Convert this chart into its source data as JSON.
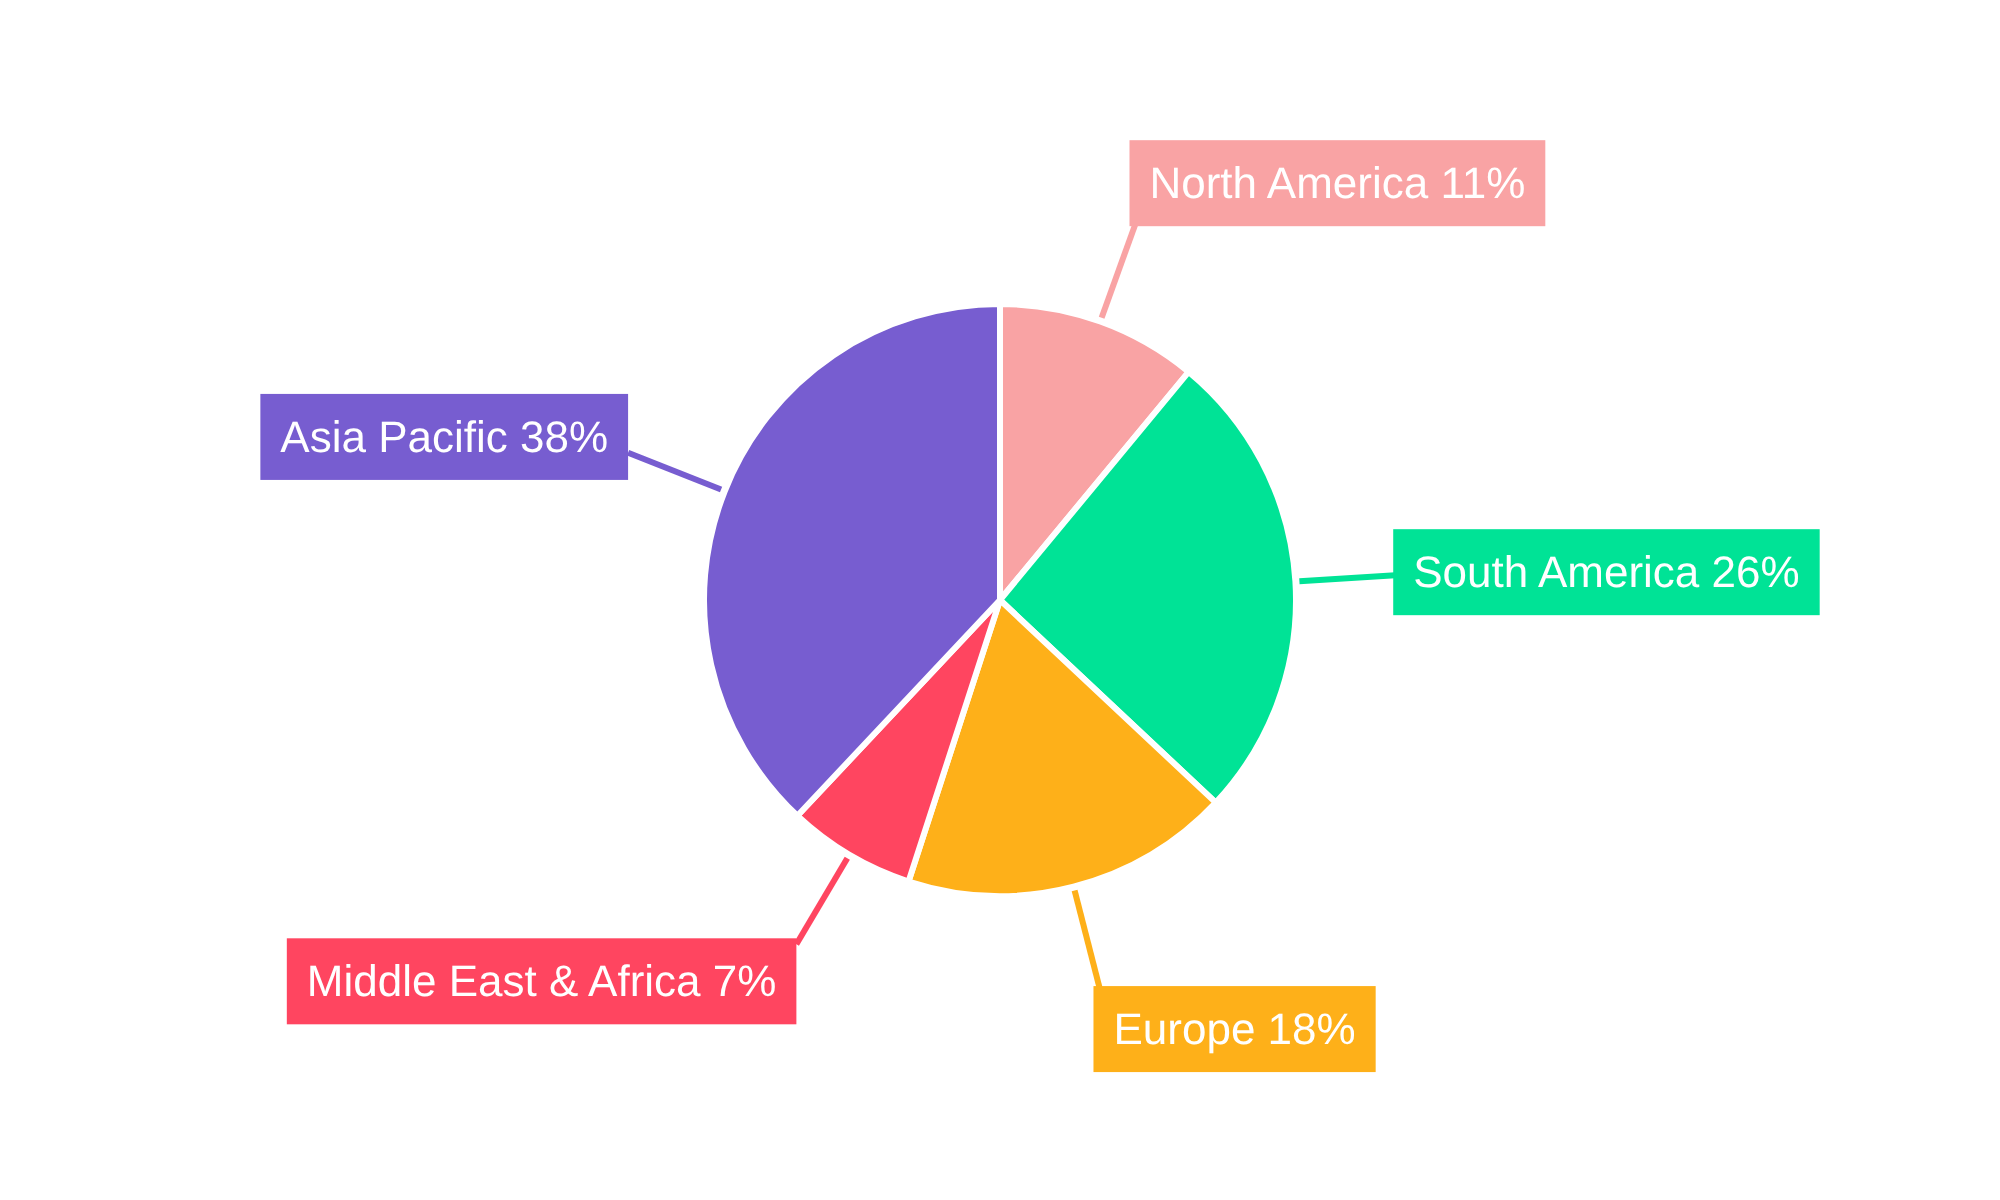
{
  "chart_data": {
    "type": "pie",
    "categories": [
      "North America",
      "South America",
      "Europe",
      "Middle East & Africa",
      "Asia Pacific"
    ],
    "values": [
      11,
      26,
      18,
      7,
      38
    ],
    "colors": [
      "#f9a3a4",
      "#00e396",
      "#feb019",
      "#ff4560",
      "#775dd0"
    ],
    "value_labels": [
      "11%",
      "26%",
      "18%",
      "7%",
      "38%"
    ]
  }
}
